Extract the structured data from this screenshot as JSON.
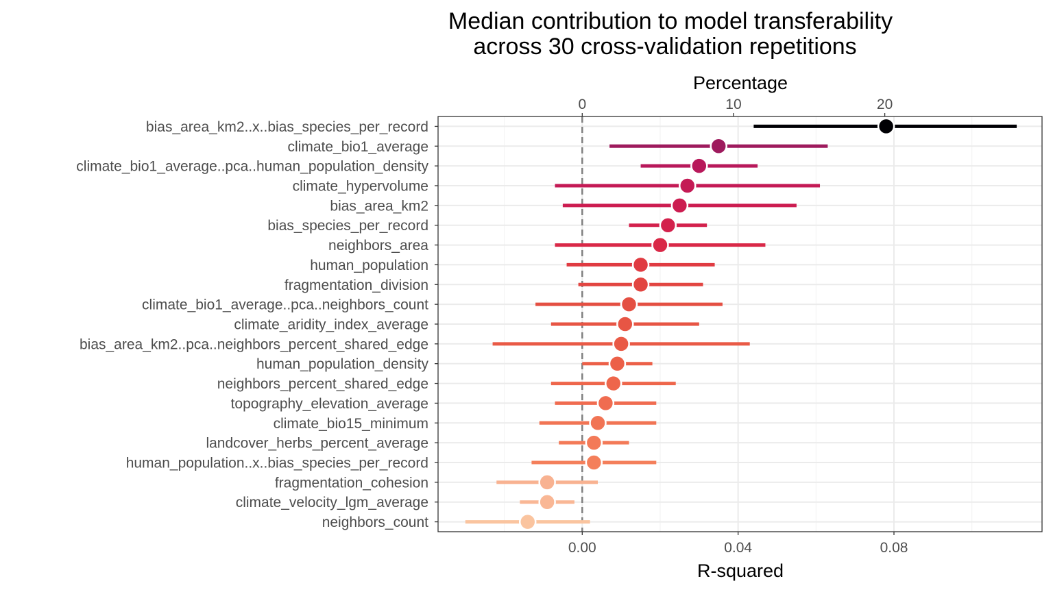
{
  "chart_data": {
    "type": "scatter",
    "title": "Median contribution to model transferability across 30 cross-validation repetitions",
    "title_lines": [
      "Median contribution to model transferability",
      "across 30 cross-validation repetitions"
    ],
    "xlabel": "R-squared",
    "x2label": "Percentage",
    "xlim": [
      -0.037,
      0.118
    ],
    "x_ticks": [
      0.0,
      0.04,
      0.08
    ],
    "x_tick_labels": [
      "0.00",
      "0.04",
      "0.08"
    ],
    "x2_ticks": [
      0,
      10,
      20
    ],
    "x2_tick_labels": [
      "0",
      "10",
      "20"
    ],
    "x2_per_x": 257.6,
    "reference_line_x": 0,
    "grid": true,
    "legend": "none",
    "series": [
      {
        "variable": "bias_area_km2..x..bias_species_per_record",
        "median": 0.078,
        "low": 0.044,
        "high": 0.1115,
        "color": "#000004"
      },
      {
        "variable": "climate_bio1_average",
        "median": 0.035,
        "low": 0.007,
        "high": 0.063,
        "color": "#9e1a5d"
      },
      {
        "variable": "climate_bio1_average..pca..human_population_density",
        "median": 0.03,
        "low": 0.015,
        "high": 0.045,
        "color": "#b8185a"
      },
      {
        "variable": "climate_hypervolume",
        "median": 0.027,
        "low": -0.007,
        "high": 0.061,
        "color": "#c41a55"
      },
      {
        "variable": "bias_area_km2",
        "median": 0.025,
        "low": -0.005,
        "high": 0.055,
        "color": "#cc1c50"
      },
      {
        "variable": "bias_species_per_record",
        "median": 0.022,
        "low": 0.012,
        "high": 0.032,
        "color": "#d3214c"
      },
      {
        "variable": "neighbors_area",
        "median": 0.02,
        "low": -0.007,
        "high": 0.047,
        "color": "#d92847"
      },
      {
        "variable": "human_population",
        "median": 0.015,
        "low": -0.004,
        "high": 0.034,
        "color": "#e03b42"
      },
      {
        "variable": "fragmentation_division",
        "median": 0.015,
        "low": -0.001,
        "high": 0.031,
        "color": "#e24541"
      },
      {
        "variable": "climate_bio1_average..pca..neighbors_count",
        "median": 0.012,
        "low": -0.012,
        "high": 0.036,
        "color": "#e44f42"
      },
      {
        "variable": "climate_aridity_index_average",
        "median": 0.011,
        "low": -0.008,
        "high": 0.03,
        "color": "#e75544"
      },
      {
        "variable": "bias_area_km2..pca..neighbors_percent_shared_edge",
        "median": 0.01,
        "low": -0.023,
        "high": 0.043,
        "color": "#e95a46"
      },
      {
        "variable": "human_population_density",
        "median": 0.009,
        "low": 0.0,
        "high": 0.018,
        "color": "#ec6048"
      },
      {
        "variable": "neighbors_percent_shared_edge",
        "median": 0.008,
        "low": -0.008,
        "high": 0.024,
        "color": "#ee664b"
      },
      {
        "variable": "topography_elevation_average",
        "median": 0.006,
        "low": -0.007,
        "high": 0.019,
        "color": "#f06c50"
      },
      {
        "variable": "climate_bio15_minimum",
        "median": 0.004,
        "low": -0.011,
        "high": 0.019,
        "color": "#f17454"
      },
      {
        "variable": "landcover_herbs_percent_average",
        "median": 0.003,
        "low": -0.006,
        "high": 0.012,
        "color": "#f37a58"
      },
      {
        "variable": "human_population..x..bias_species_per_record",
        "median": 0.003,
        "low": -0.013,
        "high": 0.019,
        "color": "#f47f5b"
      },
      {
        "variable": "fragmentation_cohesion",
        "median": -0.009,
        "low": -0.022,
        "high": 0.004,
        "color": "#f8b291"
      },
      {
        "variable": "climate_velocity_lgm_average",
        "median": -0.009,
        "low": -0.016,
        "high": -0.002,
        "color": "#f9b795"
      },
      {
        "variable": "neighbors_count",
        "median": -0.014,
        "low": -0.03,
        "high": 0.002,
        "color": "#fac49f"
      }
    ]
  }
}
